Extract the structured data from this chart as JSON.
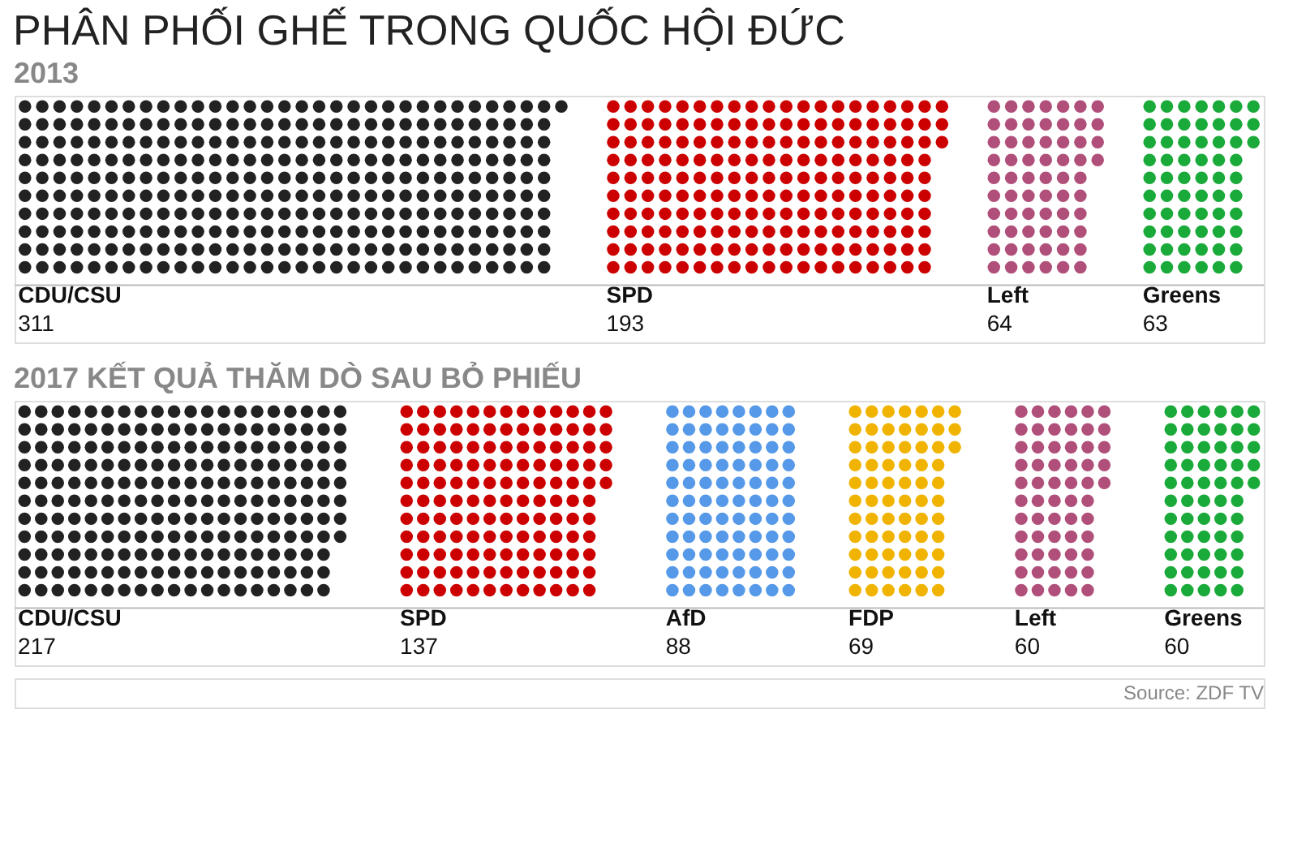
{
  "chart_data": [
    {
      "type": "other",
      "title": "PHÂN PHỐI GHẾ TRONG QUỐC HỘI ĐỨC",
      "subtitle": "2013",
      "categories": [
        "CDU/CSU",
        "SPD",
        "Left",
        "Greens"
      ],
      "values": [
        311,
        193,
        64,
        63
      ],
      "colors": [
        "#222222",
        "#cc0000",
        "#b0507a",
        "#1aaa3a"
      ],
      "data_labels": true
    },
    {
      "type": "other",
      "title": "2017 KẾT QUẢ THĂM DÒ SAU BỎ PHIẾU",
      "categories": [
        "CDU/CSU",
        "SPD",
        "AfD",
        "FDP",
        "Left",
        "Greens"
      ],
      "values": [
        217,
        137,
        88,
        69,
        60,
        60
      ],
      "colors": [
        "#222222",
        "#cc0000",
        "#5599e8",
        "#f0b400",
        "#b0507a",
        "#1aaa3a"
      ],
      "data_labels": true,
      "annotations": [
        "Source: ZDF TV"
      ]
    }
  ]
}
